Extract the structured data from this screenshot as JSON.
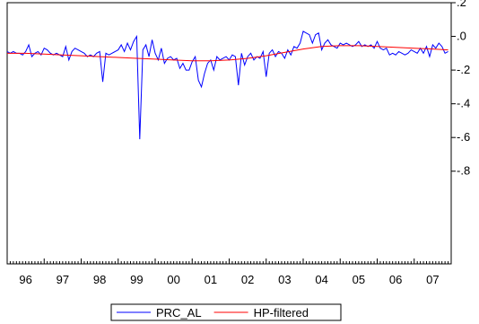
{
  "chart_data": {
    "type": "line",
    "title": "",
    "xlabel": "",
    "ylabel": "",
    "y_axis_side": "right",
    "xlim": [
      1996.0,
      2008.0
    ],
    "ylim": [
      -1.35,
      0.2
    ],
    "y_ticks": [
      0.2,
      0.0,
      -0.2,
      -0.4,
      -0.6,
      -0.8
    ],
    "y_tick_labels": [
      ".2",
      ".0",
      "-.2",
      "-.4",
      "-.6",
      "-.8"
    ],
    "x_ticks": [
      1996,
      1997,
      1998,
      1999,
      2000,
      2001,
      2002,
      2003,
      2004,
      2005,
      2006,
      2007
    ],
    "x_tick_labels": [
      "96",
      "97",
      "98",
      "99",
      "00",
      "01",
      "02",
      "03",
      "04",
      "05",
      "06",
      "07"
    ],
    "grid": false,
    "legend_placement": "bottom-center",
    "series": [
      {
        "name": "PRC_AL",
        "color": "#0000ff",
        "x": [
          1996.0,
          1996.083,
          1996.167,
          1996.25,
          1996.333,
          1996.417,
          1996.5,
          1996.583,
          1996.667,
          1996.75,
          1996.833,
          1996.917,
          1997.0,
          1997.083,
          1997.167,
          1997.25,
          1997.333,
          1997.417,
          1997.5,
          1997.583,
          1997.667,
          1997.75,
          1997.833,
          1997.917,
          1998.0,
          1998.083,
          1998.167,
          1998.25,
          1998.333,
          1998.417,
          1998.5,
          1998.583,
          1998.667,
          1998.75,
          1998.833,
          1998.917,
          1999.0,
          1999.083,
          1999.167,
          1999.25,
          1999.333,
          1999.417,
          1999.5,
          1999.583,
          1999.667,
          1999.75,
          1999.833,
          1999.917,
          2000.0,
          2000.083,
          2000.167,
          2000.25,
          2000.333,
          2000.417,
          2000.5,
          2000.583,
          2000.667,
          2000.75,
          2000.833,
          2000.917,
          2001.0,
          2001.083,
          2001.167,
          2001.25,
          2001.333,
          2001.417,
          2001.5,
          2001.583,
          2001.667,
          2001.75,
          2001.833,
          2001.917,
          2002.0,
          2002.083,
          2002.167,
          2002.25,
          2002.333,
          2002.417,
          2002.5,
          2002.583,
          2002.667,
          2002.75,
          2002.833,
          2002.917,
          2003.0,
          2003.083,
          2003.167,
          2003.25,
          2003.333,
          2003.417,
          2003.5,
          2003.583,
          2003.667,
          2003.75,
          2003.833,
          2003.917,
          2004.0,
          2004.083,
          2004.167,
          2004.25,
          2004.333,
          2004.417,
          2004.5,
          2004.583,
          2004.667,
          2004.75,
          2004.833,
          2004.917,
          2005.0,
          2005.083,
          2005.167,
          2005.25,
          2005.333,
          2005.417,
          2005.5,
          2005.583,
          2005.667,
          2005.75,
          2005.833,
          2005.917,
          2006.0,
          2006.083,
          2006.167,
          2006.25,
          2006.333,
          2006.417,
          2006.5,
          2006.583,
          2006.667,
          2006.75,
          2006.833,
          2006.917,
          2007.0,
          2007.083,
          2007.167,
          2007.25,
          2007.333,
          2007.417,
          2007.5,
          2007.583,
          2007.667,
          2007.75,
          2007.833,
          2007.917
        ],
        "y": [
          -0.09,
          -0.1,
          -0.09,
          -0.1,
          -0.1,
          -0.11,
          -0.09,
          -0.05,
          -0.12,
          -0.1,
          -0.09,
          -0.11,
          -0.07,
          -0.08,
          -0.1,
          -0.11,
          -0.1,
          -0.11,
          -0.12,
          -0.06,
          -0.14,
          -0.09,
          -0.07,
          -0.08,
          -0.09,
          -0.1,
          -0.12,
          -0.11,
          -0.12,
          -0.1,
          -0.09,
          -0.27,
          -0.1,
          -0.11,
          -0.1,
          -0.09,
          -0.08,
          -0.05,
          -0.09,
          -0.04,
          -0.08,
          -0.03,
          0.0,
          -0.61,
          -0.08,
          -0.05,
          -0.12,
          -0.02,
          -0.1,
          -0.14,
          -0.07,
          -0.16,
          -0.13,
          -0.12,
          -0.14,
          -0.13,
          -0.19,
          -0.16,
          -0.2,
          -0.2,
          -0.15,
          -0.12,
          -0.26,
          -0.3,
          -0.22,
          -0.16,
          -0.14,
          -0.2,
          -0.12,
          -0.14,
          -0.13,
          -0.12,
          -0.14,
          -0.11,
          -0.12,
          -0.29,
          -0.1,
          -0.17,
          -0.12,
          -0.1,
          -0.14,
          -0.12,
          -0.13,
          -0.09,
          -0.24,
          -0.1,
          -0.08,
          -0.12,
          -0.09,
          -0.1,
          -0.13,
          -0.08,
          -0.11,
          -0.06,
          -0.07,
          -0.04,
          0.03,
          0.02,
          0.01,
          -0.04,
          0.01,
          0.02,
          -0.08,
          -0.04,
          -0.02,
          -0.05,
          -0.06,
          -0.07,
          -0.04,
          -0.05,
          -0.04,
          -0.05,
          -0.06,
          -0.05,
          -0.03,
          -0.06,
          -0.05,
          -0.06,
          -0.05,
          -0.07,
          -0.03,
          -0.07,
          -0.08,
          -0.07,
          -0.11,
          -0.1,
          -0.11,
          -0.09,
          -0.1,
          -0.11,
          -0.1,
          -0.08,
          -0.09,
          -0.1,
          -0.07,
          -0.1,
          -0.06,
          -0.12,
          -0.05,
          -0.07,
          -0.04,
          -0.06,
          -0.1,
          -0.09
        ]
      },
      {
        "name": "HP-filtered",
        "color": "#ff0000",
        "x": [
          1996.0,
          1996.5,
          1997.0,
          1997.5,
          1998.0,
          1998.5,
          1999.0,
          1999.5,
          2000.0,
          2000.5,
          2001.0,
          2001.5,
          2002.0,
          2002.5,
          2003.0,
          2003.5,
          2004.0,
          2004.5,
          2005.0,
          2005.5,
          2006.0,
          2006.5,
          2007.0,
          2007.5,
          2007.917
        ],
        "y": [
          -0.1,
          -0.1,
          -0.105,
          -0.11,
          -0.115,
          -0.12,
          -0.125,
          -0.13,
          -0.135,
          -0.14,
          -0.145,
          -0.145,
          -0.14,
          -0.13,
          -0.115,
          -0.095,
          -0.075,
          -0.06,
          -0.055,
          -0.055,
          -0.06,
          -0.065,
          -0.07,
          -0.075,
          -0.08
        ]
      }
    ]
  }
}
